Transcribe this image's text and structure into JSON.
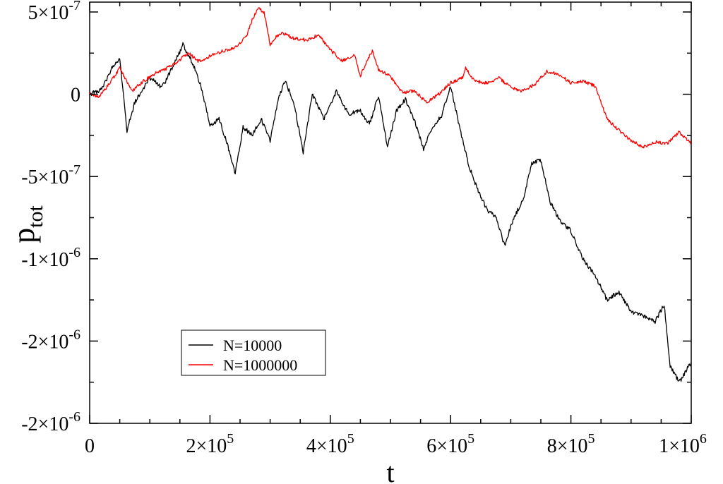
{
  "chart_data": {
    "type": "line",
    "title": "",
    "xlabel": "t",
    "ylabel_base": "p",
    "ylabel_sub": "tot",
    "xlim": [
      0,
      1000000
    ],
    "ylim": [
      -2e-06,
      5.6e-07
    ],
    "grid": false,
    "legend_position": "lower-left",
    "x_ticks": [
      {
        "value": 0,
        "mant": "0",
        "exp": ""
      },
      {
        "value": 200000,
        "mant": "2×10",
        "exp": "5"
      },
      {
        "value": 400000,
        "mant": "4×10",
        "exp": "5"
      },
      {
        "value": 600000,
        "mant": "6×10",
        "exp": "5"
      },
      {
        "value": 800000,
        "mant": "8×10",
        "exp": "5"
      },
      {
        "value": 1000000,
        "mant": "1×10",
        "exp": "6"
      }
    ],
    "y_ticks": [
      {
        "value": 5e-07,
        "mant": "5×10",
        "exp": "-7"
      },
      {
        "value": 0,
        "mant": "0",
        "exp": ""
      },
      {
        "value": -5e-07,
        "mant": "-5×10",
        "exp": "-7"
      },
      {
        "value": -1e-06,
        "mant": "-1×10",
        "exp": "-6"
      },
      {
        "value": -1.5e-06,
        "mant": "-2×10",
        "exp": "-6"
      },
      {
        "value": -2e-06,
        "mant": "-2×10",
        "exp": "-6"
      }
    ],
    "series": [
      {
        "name": "N=10000",
        "color": "#000000",
        "x": [
          0,
          20000,
          40000,
          50000,
          62000,
          75000,
          100000,
          120000,
          140000,
          155000,
          170000,
          185000,
          200000,
          215000,
          230000,
          242000,
          255000,
          270000,
          285000,
          300000,
          315000,
          325000,
          340000,
          355000,
          370000,
          390000,
          410000,
          430000,
          450000,
          465000,
          480000,
          495000,
          510000,
          525000,
          540000,
          555000,
          570000,
          585000,
          600000,
          615000,
          630000,
          645000,
          660000,
          675000,
          690000,
          705000,
          720000,
          735000,
          750000,
          765000,
          780000,
          800000,
          820000,
          840000,
          860000,
          880000,
          900000,
          920000,
          940000,
          955000,
          965000,
          980000,
          1000000
        ],
        "y": [
          0,
          3e-08,
          1.8e-07,
          2.2e-07,
          -2.2e-07,
          -5e-08,
          1e-07,
          4e-08,
          1.8e-07,
          3e-07,
          2e-07,
          5e-08,
          -1.9e-07,
          -1.5e-07,
          -3.2e-07,
          -4.8e-07,
          -2e-07,
          -2.5e-07,
          -1.5e-07,
          -2.8e-07,
          -1e-08,
          8e-08,
          -6e-08,
          -3.5e-07,
          0,
          -1.5e-07,
          2e-08,
          -1.2e-07,
          -1e-07,
          -1.8e-07,
          -1e-08,
          -3.2e-07,
          -1e-07,
          -3e-08,
          -1.6e-07,
          -3.3e-07,
          -2e-07,
          -1.3e-07,
          5e-08,
          -2e-07,
          -4.3e-07,
          -5.8e-07,
          -7e-07,
          -7.5e-07,
          -9.2e-07,
          -7.5e-07,
          -6.5e-07,
          -4.2e-07,
          -4e-07,
          -6.5e-07,
          -7.6e-07,
          -8.3e-07,
          -1e-06,
          -1.1e-06,
          -1.25e-06,
          -1.2e-06,
          -1.32e-06,
          -1.35e-06,
          -1.38e-06,
          -1.28e-06,
          -1.65e-06,
          -1.75e-06,
          -1.63e-06
        ]
      },
      {
        "name": "N=1000000",
        "color": "#ff0000",
        "x": [
          0,
          15000,
          30000,
          50000,
          70000,
          90000,
          110000,
          130000,
          150000,
          165000,
          180000,
          200000,
          220000,
          240000,
          260000,
          270000,
          280000,
          290000,
          300000,
          310000,
          320000,
          340000,
          360000,
          380000,
          400000,
          420000,
          440000,
          450000,
          460000,
          470000,
          480000,
          500000,
          520000,
          540000,
          560000,
          580000,
          600000,
          620000,
          625000,
          640000,
          660000,
          680000,
          700000,
          720000,
          740000,
          760000,
          780000,
          800000,
          820000,
          840000,
          860000,
          880000,
          900000,
          920000,
          940000,
          960000,
          980000,
          1000000
        ],
        "y": [
          0,
          -2e-08,
          5e-08,
          1.6e-07,
          2e-08,
          8e-08,
          1.3e-07,
          1.6e-07,
          2.1e-07,
          2.5e-07,
          2e-07,
          2.3e-07,
          2.6e-07,
          2.8e-07,
          3.5e-07,
          4.5e-07,
          5.2e-07,
          5e-07,
          3e-07,
          3.5e-07,
          3.7e-07,
          3.4e-07,
          3.3e-07,
          3.6e-07,
          2.7e-07,
          2e-07,
          2.4e-07,
          1.1e-07,
          2e-07,
          2.6e-07,
          1.5e-07,
          1.1e-07,
          1e-08,
          2e-08,
          -5e-08,
          0,
          7e-08,
          1e-07,
          1.6e-07,
          8e-08,
          7e-08,
          1e-07,
          4e-08,
          2e-08,
          6e-08,
          1.4e-07,
          1.2e-07,
          7e-08,
          8e-08,
          5e-08,
          -1.5e-07,
          -2.2e-07,
          -2.8e-07,
          -3.2e-07,
          -2.9e-07,
          -3e-07,
          -2.3e-07,
          -3e-07
        ]
      }
    ]
  }
}
